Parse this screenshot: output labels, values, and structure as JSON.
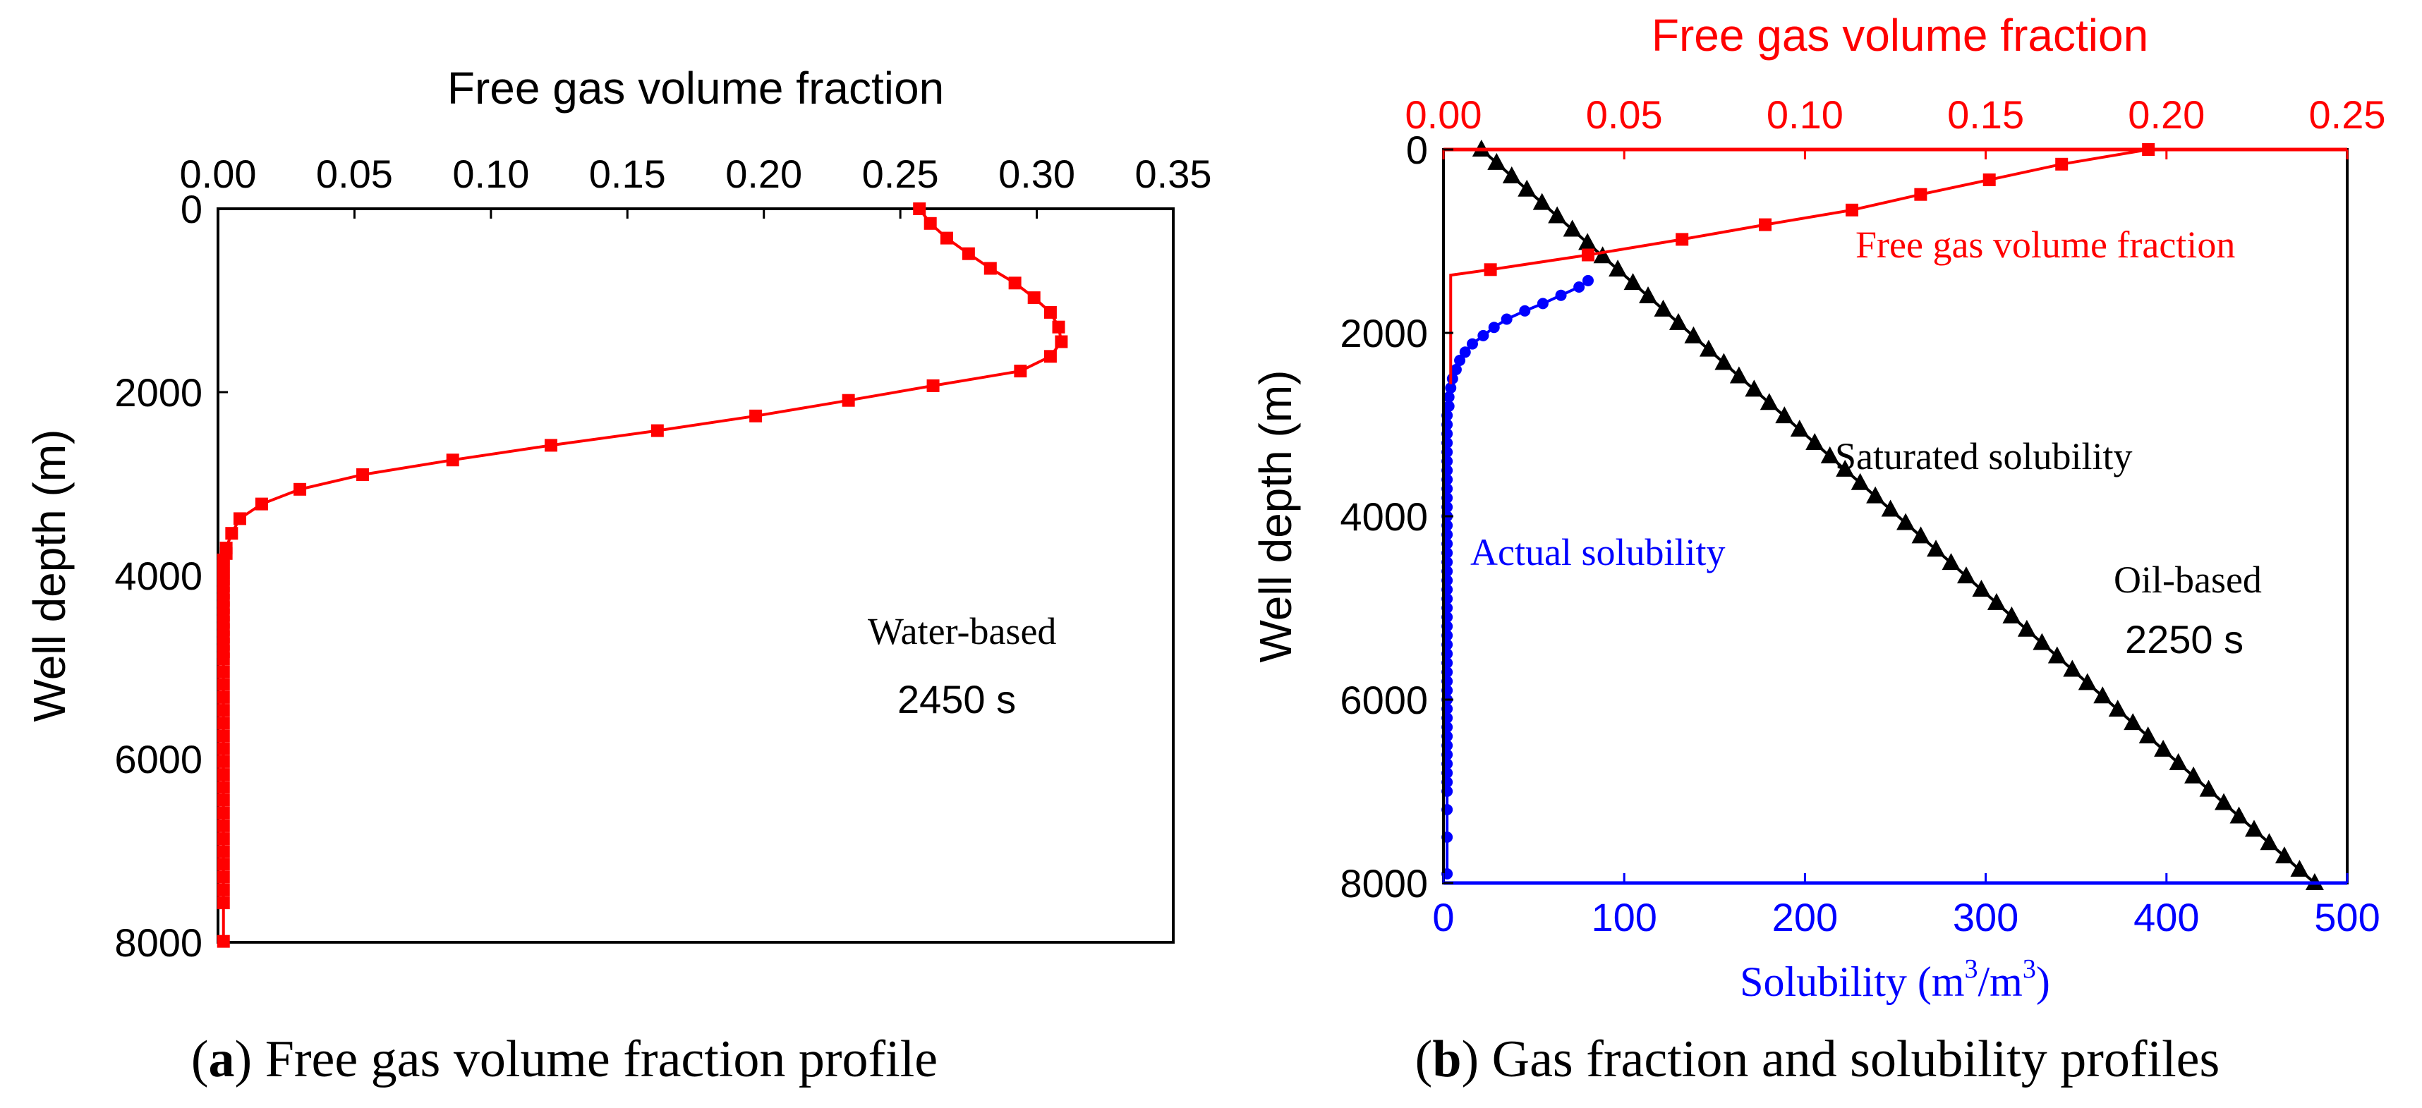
{
  "colors": {
    "red": "#ff0000",
    "blue": "#0000ff",
    "black": "#000000"
  },
  "caption_a": {
    "label": "a",
    "text": " Free gas volume fraction profile"
  },
  "caption_b": {
    "label": "b",
    "text": " Gas fraction and solubility profiles"
  },
  "chart_data": [
    {
      "type": "line",
      "title": "",
      "xlabel": "Free gas volume fraction",
      "ylabel": "Well depth (m)",
      "xlim": [
        0,
        0.35
      ],
      "ylim": [
        0,
        8000
      ],
      "y_inverted": true,
      "x_axis_position": "top",
      "x_ticks": [
        "0.00",
        "0.05",
        "0.10",
        "0.15",
        "0.20",
        "0.25",
        "0.30",
        "0.35"
      ],
      "y_ticks": [
        "0",
        "2000",
        "4000",
        "6000",
        "8000"
      ],
      "annotations": [
        {
          "text": "Water-based",
          "style": "serif"
        },
        {
          "text": "2450 s",
          "style": "sans"
        }
      ],
      "series": [
        {
          "name": "Free gas volume fraction",
          "color": "#ff0000",
          "marker": "square",
          "x": [
            0.257,
            0.261,
            0.267,
            0.275,
            0.283,
            0.292,
            0.299,
            0.305,
            0.308,
            0.309,
            0.305,
            0.294,
            0.262,
            0.231,
            0.197,
            0.161,
            0.122,
            0.086,
            0.053,
            0.03,
            0.016,
            0.008,
            0.005,
            0.003,
            0.003,
            0.002,
            0.002,
            0.002,
            0.002,
            0.002,
            0.002,
            0.002,
            0.002,
            0.002,
            0.002,
            0.002,
            0.002,
            0.002,
            0.002,
            0.002,
            0.002,
            0.002,
            0.002,
            0.002,
            0.002,
            0.002,
            0.002,
            0.002,
            0.002,
            0.002,
            0.002,
            0.002,
            0.002,
            0.002,
            0.002,
            0.002,
            0.002,
            0.002,
            0.002,
            0.002
          ],
          "y": [
            0,
            160,
            320,
            490,
            650,
            810,
            970,
            1130,
            1290,
            1450,
            1610,
            1770,
            1930,
            2090,
            2260,
            2420,
            2580,
            2740,
            2900,
            3060,
            3220,
            3380,
            3540,
            3700,
            3760,
            3830,
            3900,
            3970,
            4040,
            4110,
            4190,
            4270,
            4350,
            4430,
            4510,
            4590,
            4670,
            4750,
            4830,
            4910,
            5050,
            5190,
            5330,
            5470,
            5610,
            5750,
            5890,
            6030,
            6170,
            6310,
            6450,
            6590,
            6730,
            6870,
            7010,
            7150,
            7290,
            7430,
            7570,
            7990
          ]
        }
      ]
    },
    {
      "type": "line",
      "title": "",
      "xlabel": "Solubility (m³/m³)",
      "xlabel_base": "Solubility (m",
      "xlabel_sup1": "3",
      "xlabel_mid": "/m",
      "xlabel_sup2": "3",
      "xlabel_end": ")",
      "x2label": "Free gas volume fraction",
      "ylabel": "Well depth (m)",
      "xlim": [
        0,
        500
      ],
      "x2lim": [
        0,
        0.25
      ],
      "ylim": [
        0,
        8000
      ],
      "y_inverted": true,
      "x_ticks": [
        "0",
        "100",
        "200",
        "300",
        "400",
        "500"
      ],
      "x2_ticks": [
        "0.00",
        "0.05",
        "0.10",
        "0.15",
        "0.20",
        "0.25"
      ],
      "y_ticks": [
        "0",
        "2000",
        "4000",
        "6000",
        "8000"
      ],
      "annotations": [
        {
          "text": "Free gas volume fraction",
          "color": "#ff0000"
        },
        {
          "text": "Saturated solubility",
          "color": "#000000"
        },
        {
          "text": "Actual solubility",
          "color": "#0000ff"
        },
        {
          "text": "Oil-based",
          "color": "#000000"
        },
        {
          "text": "2250 s",
          "color": "#000000"
        }
      ],
      "series": [
        {
          "name": "Free gas volume fraction",
          "axis": "top",
          "color": "#ff0000",
          "marker": "square",
          "x": [
            0.195,
            0.171,
            0.151,
            0.132,
            0.113,
            0.089,
            0.066,
            0.04,
            0.013,
            0.002,
            0.002,
            0.002,
            0.002,
            0.002,
            0.002,
            0.002,
            0.002
          ],
          "y": [
            0,
            160,
            330,
            490,
            660,
            820,
            980,
            1150,
            1310,
            1370,
            1600,
            1800,
            2000,
            2200,
            2350,
            2480,
            2560
          ]
        },
        {
          "name": "Actual solubility",
          "axis": "bottom",
          "color": "#0000ff",
          "marker": "circle",
          "x": [
            80,
            75,
            65,
            55,
            45,
            35,
            28,
            22,
            16,
            12,
            9,
            7,
            5,
            4,
            3,
            3,
            2,
            2,
            2,
            2,
            2,
            2,
            2,
            2,
            2,
            2,
            2,
            2,
            2,
            2,
            2,
            2,
            2,
            2,
            2,
            2,
            2,
            2,
            2,
            2,
            2,
            2,
            2,
            2,
            2,
            2,
            2,
            2,
            2,
            2,
            2,
            2,
            2,
            2,
            2,
            2,
            2,
            2,
            2,
            2,
            2
          ],
          "y": [
            1430,
            1500,
            1590,
            1680,
            1760,
            1850,
            1940,
            2030,
            2120,
            2210,
            2300,
            2400,
            2500,
            2600,
            2700,
            2800,
            2900,
            3000,
            3100,
            3200,
            3300,
            3400,
            3500,
            3600,
            3700,
            3800,
            3900,
            4000,
            4100,
            4200,
            4300,
            4400,
            4500,
            4600,
            4700,
            4800,
            4900,
            5000,
            5100,
            5200,
            5300,
            5400,
            5500,
            5600,
            5700,
            5800,
            5900,
            6000,
            6100,
            6200,
            6300,
            6400,
            6500,
            6600,
            6700,
            6800,
            6900,
            7000,
            7200,
            7500,
            7900
          ]
        },
        {
          "name": "Saturated solubility",
          "axis": "bottom",
          "color": "#000000",
          "marker": "triangle",
          "x_range": [
            21,
            482
          ],
          "y_range": [
            0,
            8000
          ],
          "count": 56
        }
      ]
    }
  ]
}
